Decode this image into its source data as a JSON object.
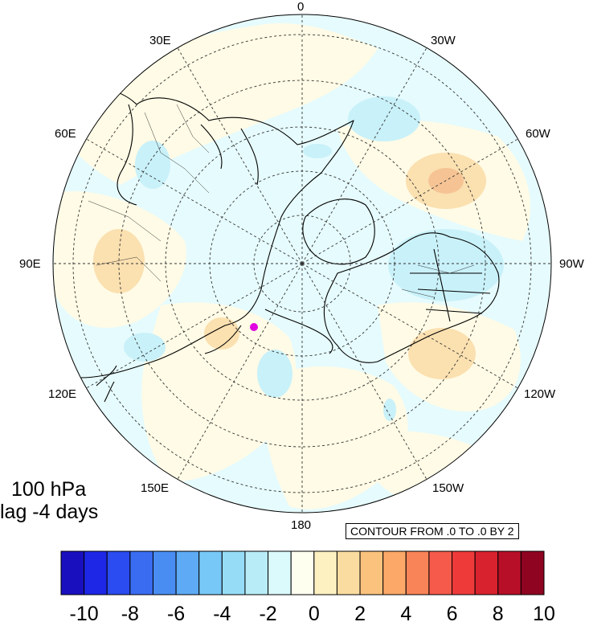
{
  "map": {
    "projection": "north-polar-stereographic",
    "longitude_labels": {
      "top": "0",
      "top_right": "30W",
      "right_upper": "60W",
      "right": "90W",
      "right_lower": "120W",
      "bottom_right": "150W",
      "bottom": "180",
      "bottom_left": "150E",
      "left_lower": "120E",
      "left": "90E",
      "left_upper": "60E",
      "top_left": "30E"
    },
    "marker_color": "#e000e0",
    "land_fill": "#f5e6c0",
    "ocean_fill": "#e6fbfd"
  },
  "title": {
    "line1": "100 hPa",
    "line2": "lag -4 days"
  },
  "contour_info": "CONTOUR FROM .0 TO .0 BY 2",
  "colorbar": {
    "colors": [
      "#1a0fbf",
      "#1e27e6",
      "#2a4cf0",
      "#3a6cf2",
      "#4a8df2",
      "#5eaaf5",
      "#78c8f7",
      "#96dcf6",
      "#b8ecf7",
      "#dafafb",
      "#fffff0",
      "#fdf1c2",
      "#fbdca0",
      "#fbc27e",
      "#fba868",
      "#f98458",
      "#f55a4a",
      "#ef3a3a",
      "#d8222e",
      "#b80f28",
      "#8f0421"
    ],
    "labels": [
      "-10",
      "-8",
      "-6",
      "-4",
      "-2",
      "0",
      "2",
      "4",
      "6",
      "8",
      "10"
    ]
  }
}
